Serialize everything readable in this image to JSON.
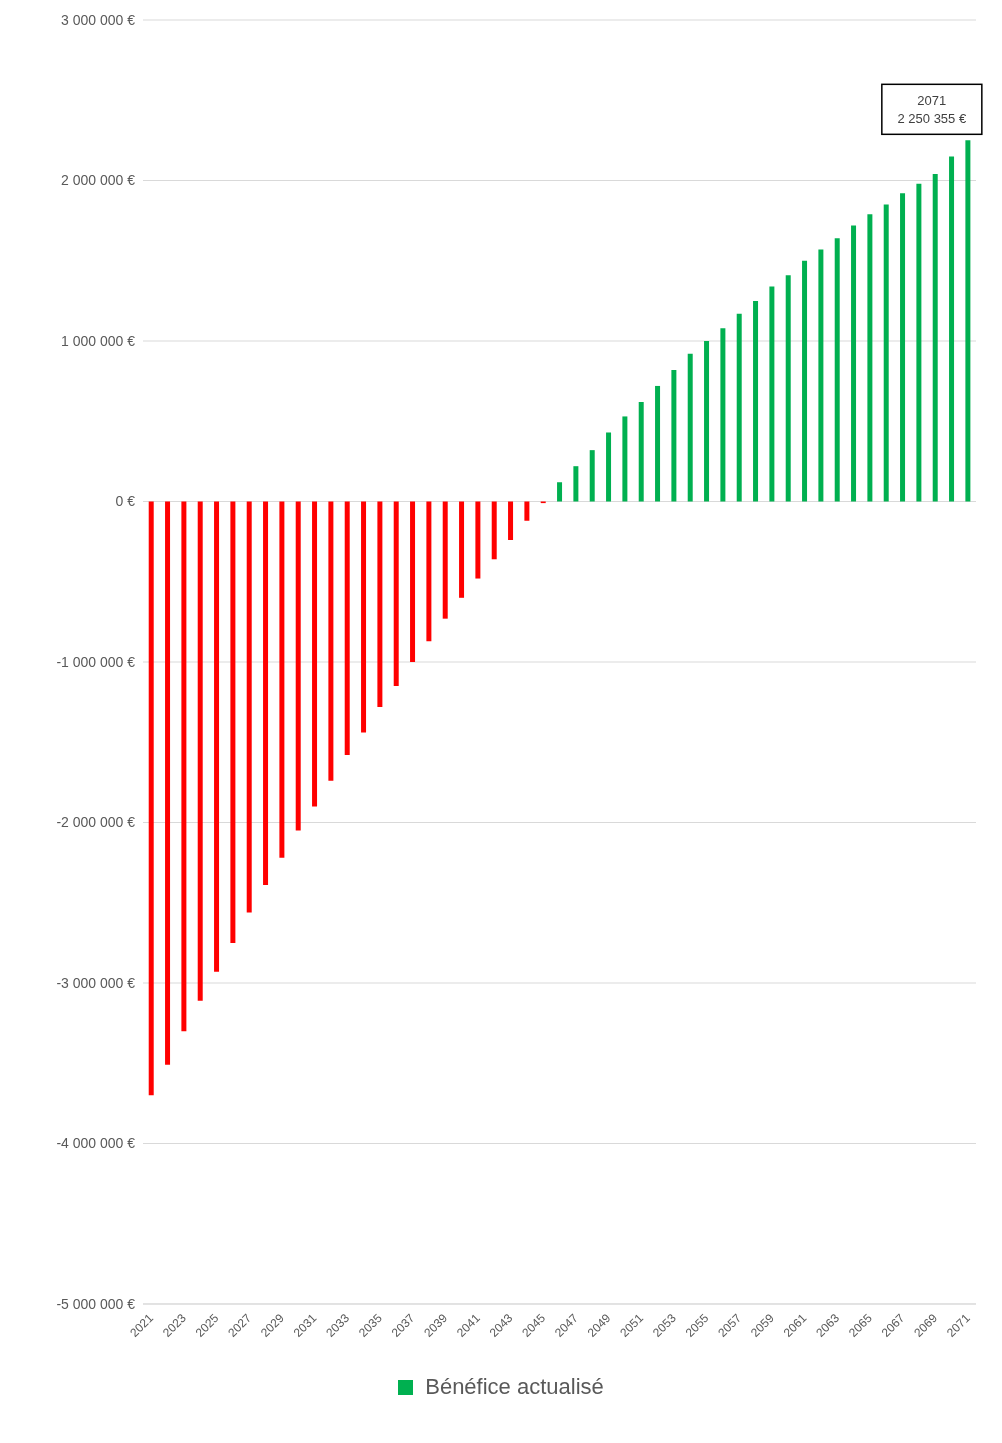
{
  "chart_data": {
    "type": "bar",
    "categories": [
      "2021",
      null,
      "2023",
      null,
      "2025",
      null,
      "2027",
      null,
      "2029",
      null,
      "2031",
      null,
      "2033",
      null,
      "2035",
      null,
      "2037",
      null,
      "2039",
      null,
      "2041",
      null,
      "2043",
      null,
      "2045",
      null,
      "2047",
      null,
      "2049",
      null,
      "2051",
      null,
      "2053",
      null,
      "2055",
      null,
      "2057",
      null,
      "2059",
      null,
      "2061",
      null,
      "2063",
      null,
      "2065",
      null,
      "2067",
      null,
      "2069",
      null,
      "2071"
    ],
    "series": [
      {
        "name": "Bénéfice actualisé",
        "color": "#00b050",
        "colors": [
          "#ff0000",
          "#ff0000",
          "#ff0000",
          "#ff0000",
          "#ff0000",
          "#ff0000",
          "#ff0000",
          "#ff0000",
          "#ff0000",
          "#ff0000",
          "#ff0000",
          "#ff0000",
          "#ff0000",
          "#ff0000",
          "#ff0000",
          "#ff0000",
          "#ff0000",
          "#ff0000",
          "#ff0000",
          "#ff0000",
          "#ff0000",
          "#ff0000",
          "#ff0000",
          "#ff0000",
          "#ff0000",
          "#00b050",
          "#00b050",
          "#00b050",
          "#00b050",
          "#00b050",
          "#00b050",
          "#00b050",
          "#00b050",
          "#00b050",
          "#00b050",
          "#00b050",
          "#00b050",
          "#00b050",
          "#00b050",
          "#00b050",
          "#00b050",
          "#00b050",
          "#00b050",
          "#00b050",
          "#00b050",
          "#00b050",
          "#00b050",
          "#00b050",
          "#00b050",
          "#00b050",
          "#00b050"
        ],
        "values": [
          -3700000,
          -3510000,
          -3300000,
          -3110000,
          -2930000,
          -2750000,
          -2560000,
          -2390000,
          -2220000,
          -2050000,
          -1900000,
          -1740000,
          -1580000,
          -1440000,
          -1280000,
          -1150000,
          -1000000,
          -870000,
          -730000,
          -600000,
          -480000,
          -360000,
          -240000,
          -120000,
          -10000,
          120000,
          220000,
          320000,
          430000,
          530000,
          620000,
          720000,
          820000,
          920000,
          1000000,
          1080000,
          1170000,
          1250000,
          1340000,
          1410000,
          1500000,
          1570000,
          1640000,
          1720000,
          1790000,
          1850000,
          1920000,
          1980000,
          2040000,
          2150000,
          2250355
        ]
      }
    ],
    "ylim": [
      -5000000,
      3000000
    ],
    "yticks": [
      {
        "value": -5000000,
        "label": "-5 000 000 €"
      },
      {
        "value": -4000000,
        "label": "-4 000 000 €"
      },
      {
        "value": -3000000,
        "label": "-3 000 000 €"
      },
      {
        "value": -2000000,
        "label": "-2 000 000 €"
      },
      {
        "value": -1000000,
        "label": "-1 000 000 €"
      },
      {
        "value": 0,
        "label": "0 €"
      },
      {
        "value": 1000000,
        "label": "1 000 000 €"
      },
      {
        "value": 2000000,
        "label": "2 000 000 €"
      },
      {
        "value": 3000000,
        "label": "3 000 000 €"
      }
    ],
    "grid": "y",
    "legend": "bottom",
    "annotations": [
      {
        "text": "2071\n2 250 355 €",
        "x": "2071",
        "y": 2250355
      }
    ]
  }
}
